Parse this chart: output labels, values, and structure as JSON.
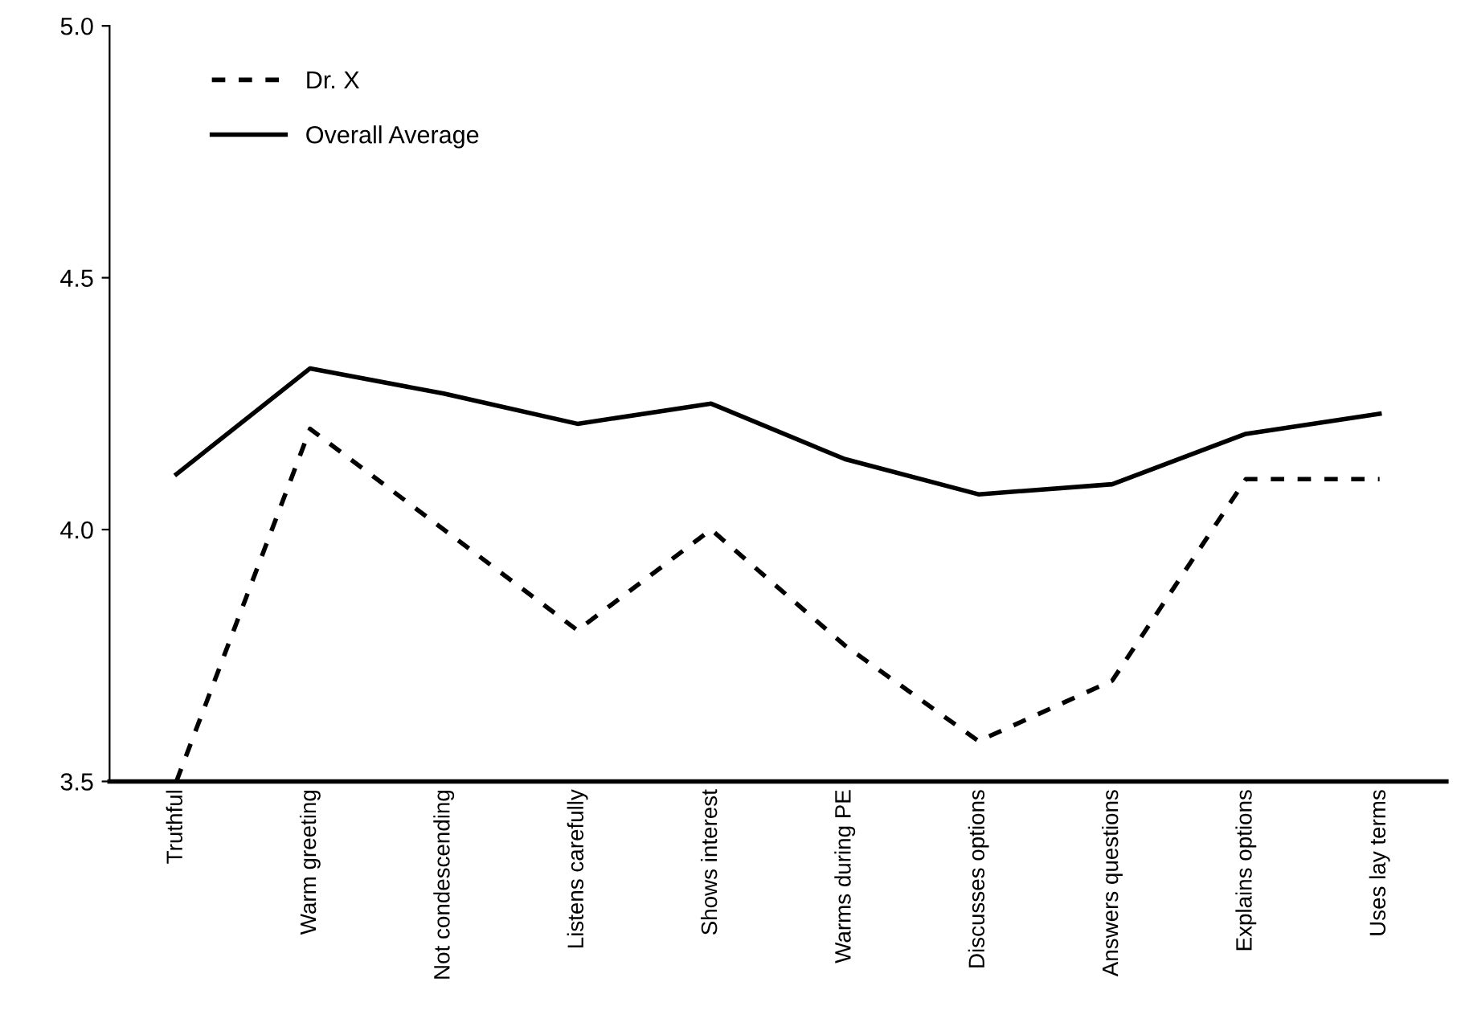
{
  "chart_data": {
    "type": "line",
    "categories": [
      "Truthful",
      "Warm greeting",
      "Not condescending",
      "Listens carefully",
      "Shows interest",
      "Warms during PE",
      "Discusses options",
      "Answers questions",
      "Explains options",
      "Uses lay terms"
    ],
    "series": [
      {
        "name": "Dr. X",
        "color": "#000000",
        "line_style": "dashed",
        "values": [
          3.5,
          4.2,
          4.0,
          3.8,
          4.0,
          3.77,
          3.58,
          3.7,
          4.1,
          4.1
        ]
      },
      {
        "name": "Overall Average",
        "color": "#000000",
        "line_style": "solid",
        "values": [
          4.11,
          4.32,
          4.27,
          4.21,
          4.25,
          4.14,
          4.07,
          4.09,
          4.19,
          4.23
        ]
      }
    ],
    "ylim": [
      3.5,
      5.0
    ],
    "yticks": [
      {
        "value": 3.5,
        "label": "3.5"
      },
      {
        "value": 4.0,
        "label": "4.0"
      },
      {
        "value": 4.5,
        "label": "4.5"
      },
      {
        "value": 5.0,
        "label": "5.0"
      }
    ],
    "grid": false,
    "legend": "top left",
    "marker": "none"
  }
}
